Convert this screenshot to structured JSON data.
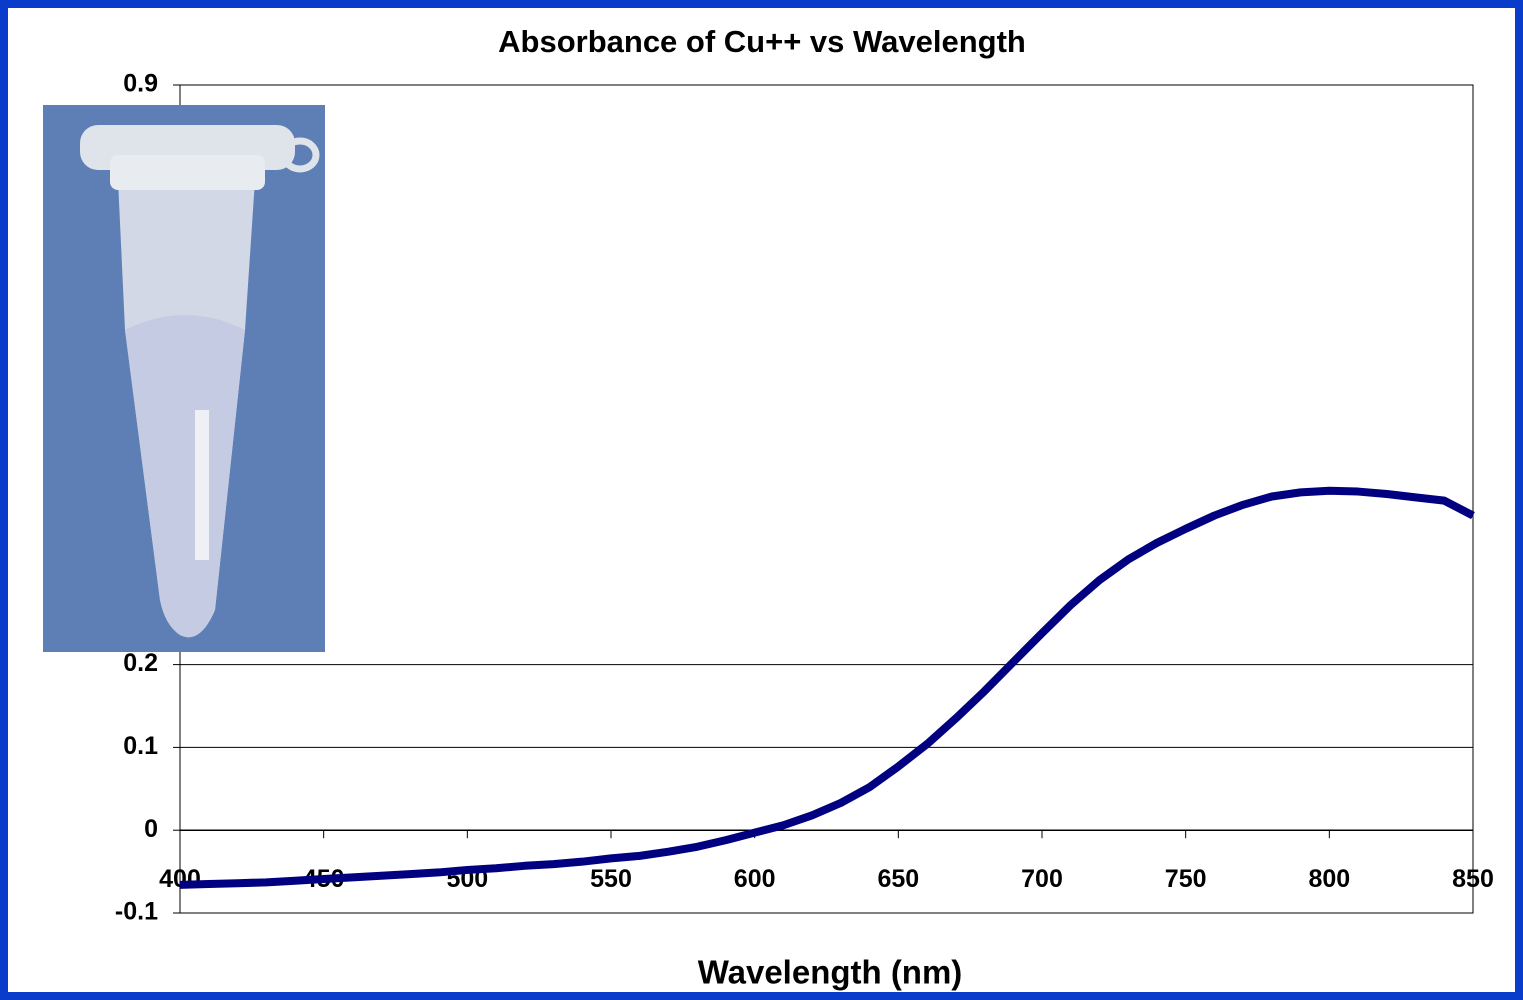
{
  "chart_data": {
    "type": "line",
    "title": "Absorbance of Cu++ vs Wavelength",
    "x_label": "Wavelength (nm)",
    "x": [
      400,
      410,
      420,
      430,
      440,
      450,
      460,
      470,
      480,
      490,
      500,
      510,
      520,
      530,
      540,
      550,
      560,
      570,
      580,
      590,
      600,
      610,
      620,
      630,
      640,
      650,
      660,
      670,
      680,
      690,
      700,
      710,
      720,
      730,
      740,
      750,
      760,
      770,
      780,
      790,
      800,
      810,
      820,
      830,
      840,
      850
    ],
    "series": [
      {
        "color": "#000080",
        "values": [
          -0.066,
          -0.065,
          -0.064,
          -0.063,
          -0.061,
          -0.059,
          -0.057,
          -0.055,
          -0.053,
          -0.051,
          -0.048,
          -0.046,
          -0.043,
          -0.041,
          -0.038,
          -0.034,
          -0.031,
          -0.026,
          -0.02,
          -0.012,
          -0.003,
          0.006,
          0.018,
          0.033,
          0.052,
          0.077,
          0.104,
          0.135,
          0.168,
          0.203,
          0.238,
          0.272,
          0.302,
          0.327,
          0.347,
          0.364,
          0.38,
          0.393,
          0.403,
          0.408,
          0.41,
          0.409,
          0.406,
          0.402,
          0.398,
          0.38
        ]
      }
    ],
    "xlim": [
      400,
      850
    ],
    "xticks": [
      400,
      450,
      500,
      550,
      600,
      650,
      700,
      750,
      800,
      850
    ],
    "ylim": [
      -0.1,
      0.9
    ],
    "yticks": [
      -0.1,
      0,
      0.1,
      0.2,
      0.9
    ],
    "grid": true
  }
}
